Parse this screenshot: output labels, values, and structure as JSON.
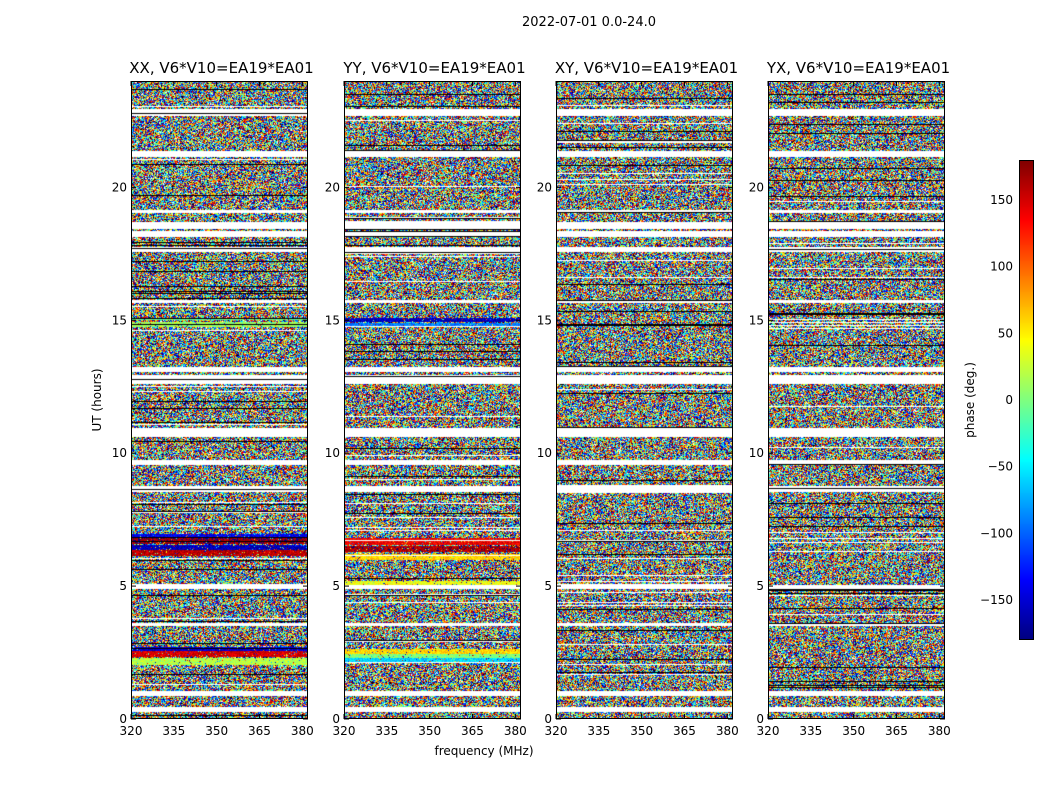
{
  "chart_data": {
    "type": "heatmap",
    "title": "2022-07-01 0.0-24.0",
    "xlabel": "frequency (MHz)",
    "ylabel": "UT (hours)",
    "xlim": [
      320,
      382
    ],
    "ylim": [
      0,
      24
    ],
    "xticks": [
      320,
      335,
      350,
      365,
      380
    ],
    "yticks": [
      0,
      5,
      10,
      15,
      20
    ],
    "panels": [
      {
        "title": "XX, V6*V10=EA19*EA01",
        "coherent_bands": [
          {
            "ut": [
              2.05,
              2.3
            ],
            "phase": 20
          },
          {
            "ut": [
              2.35,
              2.55
            ],
            "phase": 150
          },
          {
            "ut": [
              2.55,
              2.7
            ],
            "phase": -150
          },
          {
            "ut": [
              6.15,
              6.35
            ],
            "phase": 160
          },
          {
            "ut": [
              6.35,
              6.55
            ],
            "phase": -160
          },
          {
            "ut": [
              6.6,
              6.8
            ],
            "phase": 170
          },
          {
            "ut": [
              6.8,
              6.95
            ],
            "phase": -140
          },
          {
            "ut": [
              14.75,
              14.95
            ],
            "phase": 10
          },
          {
            "ut": [
              15.0,
              15.1
            ],
            "phase": -10
          }
        ]
      },
      {
        "title": "YY, V6*V10=EA19*EA01",
        "coherent_bands": [
          {
            "ut": [
              2.1,
              2.3
            ],
            "phase": -60
          },
          {
            "ut": [
              2.3,
              2.5
            ],
            "phase": 0
          },
          {
            "ut": [
              2.45,
              2.65
            ],
            "phase": 60
          },
          {
            "ut": [
              5.0,
              5.2
            ],
            "phase": 40
          },
          {
            "ut": [
              6.0,
              6.2
            ],
            "phase": 60
          },
          {
            "ut": [
              6.3,
              6.5
            ],
            "phase": 165
          },
          {
            "ut": [
              6.55,
              6.8
            ],
            "phase": 140
          },
          {
            "ut": [
              14.75,
              14.9
            ],
            "phase": -90
          },
          {
            "ut": [
              14.95,
              15.1
            ],
            "phase": -160
          }
        ]
      },
      {
        "title": "XY, V6*V10=EA19*EA01",
        "coherent_bands": []
      },
      {
        "title": "YX, V6*V10=EA19*EA01",
        "coherent_bands": []
      }
    ],
    "gaps_ut": [
      [
        0.25,
        0.45
      ],
      [
        0.85,
        1.05
      ],
      [
        9.55,
        9.75
      ],
      [
        10.6,
        10.95
      ],
      [
        12.6,
        12.95
      ],
      [
        13.05,
        13.25
      ],
      [
        17.55,
        17.75
      ],
      [
        18.15,
        18.35
      ],
      [
        18.45,
        18.7
      ],
      [
        21.15,
        21.35
      ],
      [
        22.7,
        22.95
      ],
      [
        8.55,
        8.75
      ],
      [
        4.9,
        5.05
      ],
      [
        3.5,
        3.6
      ],
      [
        15.65,
        15.75
      ],
      [
        19.05,
        19.15
      ]
    ],
    "colorbar": {
      "label": "phase (deg.)",
      "range": [
        -180,
        180
      ],
      "ticks": [
        -150,
        -100,
        -50,
        0,
        50,
        100,
        150
      ],
      "colormap": "jet"
    }
  }
}
